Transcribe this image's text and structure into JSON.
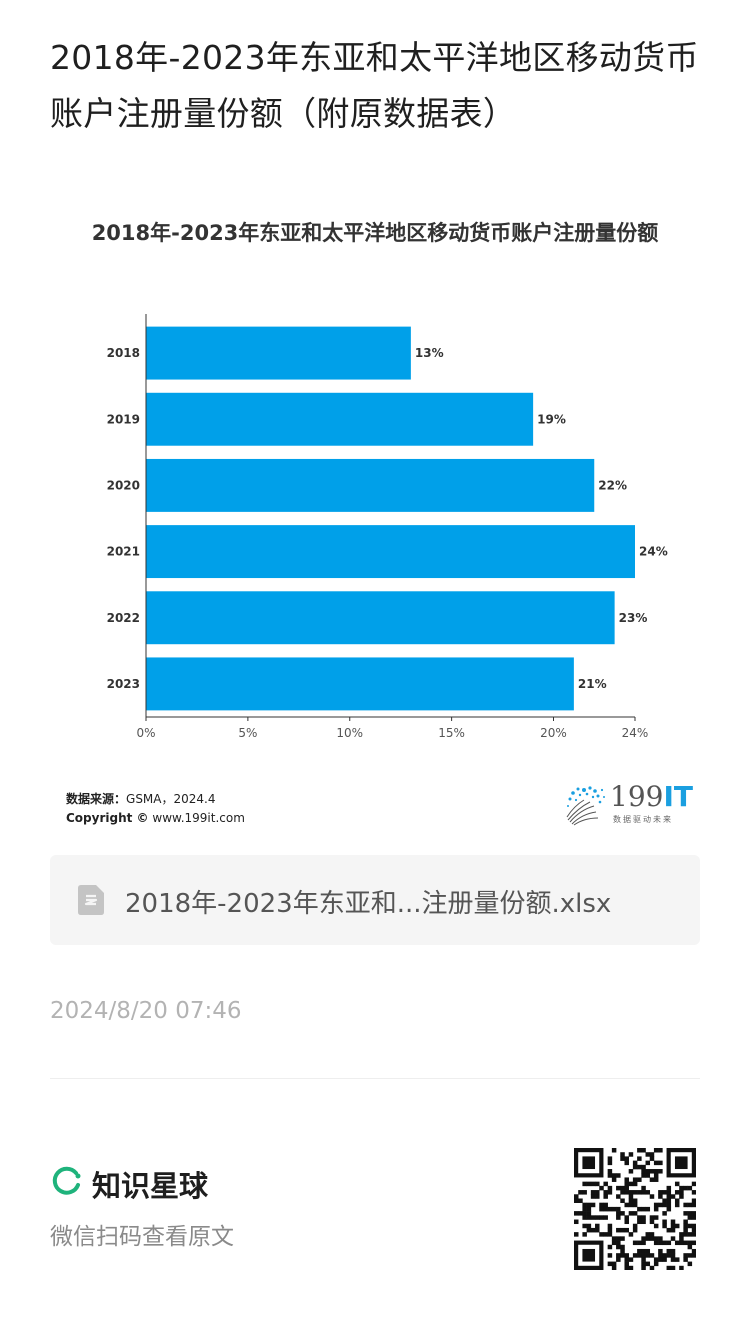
{
  "page": {
    "title": "2018年-2023年东亚和太平洋地区移动货币账户注册量份额（附原数据表）"
  },
  "chart_data": {
    "type": "bar",
    "orientation": "horizontal",
    "title": "2018年-2023年东亚和太平洋地区移动货币账户注册量份额",
    "categories": [
      "2018",
      "2019",
      "2020",
      "2021",
      "2022",
      "2023"
    ],
    "values": [
      13,
      19,
      22,
      24,
      23,
      21
    ],
    "value_labels": [
      "13%",
      "19%",
      "22%",
      "24%",
      "23%",
      "21%"
    ],
    "x_ticks": [
      "0%",
      "5%",
      "10%",
      "15%",
      "20%",
      "24%"
    ],
    "x_tick_values": [
      0,
      5,
      10,
      15,
      20,
      24
    ],
    "xlim": [
      0,
      24
    ],
    "xlabel": "",
    "ylabel": "",
    "grid": false,
    "bar_color": "#00a0e9"
  },
  "source": {
    "label": "数据来源：",
    "value": "GSMA，2024.4",
    "copyright_label": "Copyright ©",
    "copyright_site": "www.199it.com"
  },
  "brand": {
    "name_num": "199",
    "name_it": "IT",
    "tagline": "数据驱动未来"
  },
  "file": {
    "name": "2018年-2023年东亚和...注册量份额.xlsx",
    "icon": "spreadsheet-file-icon"
  },
  "meta": {
    "timestamp": "2024/8/20 07:46"
  },
  "footer": {
    "app_name": "知识星球",
    "scan_hint": "微信扫码查看原文",
    "accent_color": "#1fb37c"
  }
}
